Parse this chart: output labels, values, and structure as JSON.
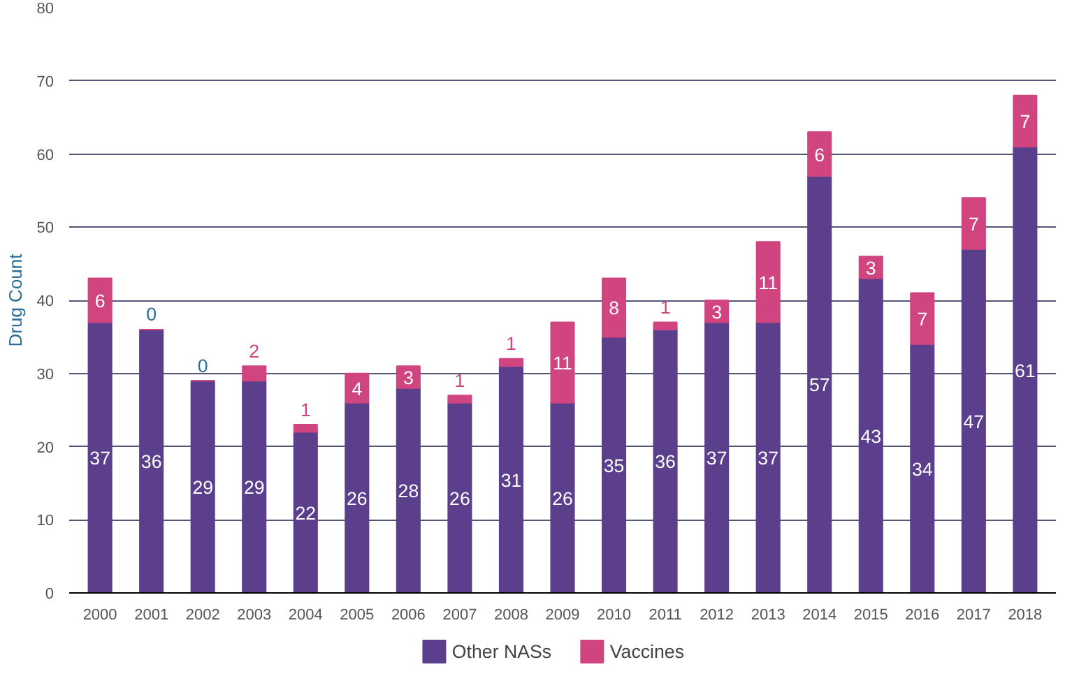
{
  "chart_data": {
    "type": "bar",
    "stacked": true,
    "ylabel": "Drug Count",
    "categories": [
      "2000",
      "2001",
      "2002",
      "2003",
      "2004",
      "2005",
      "2006",
      "2007",
      "2008",
      "2009",
      "2010",
      "2011",
      "2012",
      "2013",
      "2014",
      "2015",
      "2016",
      "2017",
      "2018"
    ],
    "series": [
      {
        "name": "Other NASs",
        "color": "#5c3f8c",
        "values": [
          37,
          36,
          29,
          29,
          22,
          26,
          28,
          26,
          31,
          26,
          35,
          36,
          37,
          37,
          57,
          43,
          34,
          47,
          61
        ]
      },
      {
        "name": "Vaccines",
        "color": "#d0447f",
        "values": [
          6,
          0,
          0,
          2,
          1,
          4,
          3,
          1,
          1,
          11,
          8,
          1,
          3,
          11,
          6,
          3,
          7,
          7,
          7
        ]
      }
    ],
    "ylim": [
      0,
      80
    ],
    "yticks": [
      0,
      10,
      20,
      30,
      40,
      50,
      60,
      70,
      80
    ],
    "grid": "y",
    "legend": "bottom",
    "data_labels": true
  }
}
